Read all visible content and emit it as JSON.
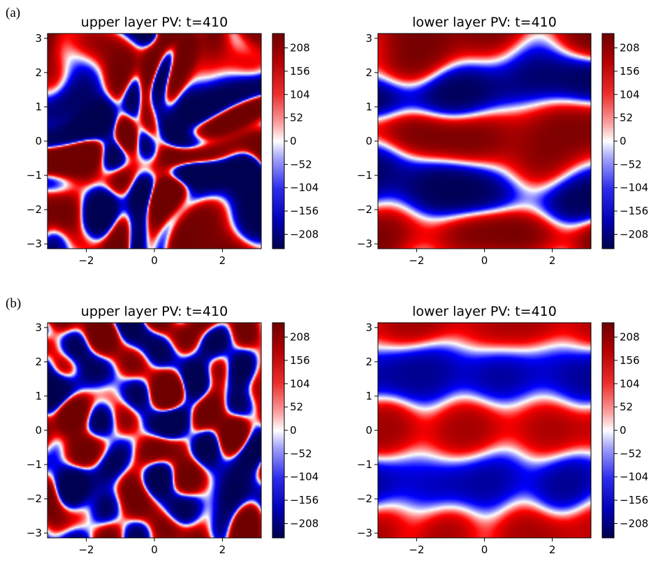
{
  "panel_labels": [
    "(a)",
    "(b)"
  ],
  "chart_data": [
    {
      "type": "heatmap",
      "panel": "(a)",
      "title": "upper layer PV: t=410",
      "xlabel": "",
      "ylabel": "",
      "xlim": [
        -3.14,
        3.14
      ],
      "ylim": [
        -3.14,
        3.14
      ],
      "xticks": [
        -2,
        0,
        2
      ],
      "xtick_labels": [
        "−2",
        "0",
        "2"
      ],
      "yticks": [
        -3,
        -2,
        -1,
        0,
        1,
        2,
        3
      ],
      "ytick_labels": [
        "−3",
        "−2",
        "−1",
        "0",
        "1",
        "2",
        "3"
      ],
      "pattern": "turbulent",
      "colorbar": {
        "range": [
          -240,
          240
        ],
        "ticks": [
          208,
          156,
          104,
          52,
          0,
          -52,
          -104,
          -156,
          -208
        ],
        "tick_labels": [
          "208",
          "156",
          "104",
          "52",
          "0",
          "−52",
          "−104",
          "−156",
          "−208"
        ],
        "cmap": "seismic"
      }
    },
    {
      "type": "heatmap",
      "panel": "(a)",
      "title": "lower layer PV: t=410",
      "xlabel": "",
      "ylabel": "",
      "xlim": [
        -3.14,
        3.14
      ],
      "ylim": [
        -3.14,
        3.14
      ],
      "xticks": [
        -2,
        0,
        2
      ],
      "xtick_labels": [
        "−2",
        "0",
        "2"
      ],
      "yticks": [
        -3,
        -2,
        -1,
        0,
        1,
        2,
        3
      ],
      "ytick_labels": [
        "−3",
        "−2",
        "−1",
        "0",
        "1",
        "2",
        "3"
      ],
      "pattern": "zonal-bands-swirled",
      "colorbar": {
        "range": [
          -240,
          240
        ],
        "ticks": [
          208,
          156,
          104,
          52,
          0,
          -52,
          -104,
          -156,
          -208
        ],
        "tick_labels": [
          "208",
          "156",
          "104",
          "52",
          "0",
          "−52",
          "−104",
          "−156",
          "−208"
        ],
        "cmap": "seismic"
      }
    },
    {
      "type": "heatmap",
      "panel": "(b)",
      "title": "upper layer PV: t=410",
      "xlabel": "",
      "ylabel": "",
      "xlim": [
        -3.14,
        3.14
      ],
      "ylim": [
        -3.14,
        3.14
      ],
      "xticks": [
        -2,
        0,
        2
      ],
      "xtick_labels": [
        "−2",
        "0",
        "2"
      ],
      "yticks": [
        -3,
        -2,
        -1,
        0,
        1,
        2,
        3
      ],
      "ytick_labels": [
        "−3",
        "−2",
        "−1",
        "0",
        "1",
        "2",
        "3"
      ],
      "pattern": "banded-turbulent",
      "colorbar": {
        "range": [
          -240,
          240
        ],
        "ticks": [
          208,
          156,
          104,
          52,
          0,
          -52,
          -104,
          -156,
          -208
        ],
        "tick_labels": [
          "208",
          "156",
          "104",
          "52",
          "0",
          "−52",
          "−104",
          "−156",
          "−208"
        ],
        "cmap": "seismic"
      }
    },
    {
      "type": "heatmap",
      "panel": "(b)",
      "title": "lower layer PV: t=410",
      "xlabel": "",
      "ylabel": "",
      "xlim": [
        -3.14,
        3.14
      ],
      "ylim": [
        -3.14,
        3.14
      ],
      "xticks": [
        -2,
        0,
        2
      ],
      "xtick_labels": [
        "−2",
        "0",
        "2"
      ],
      "yticks": [
        -3,
        -2,
        -1,
        0,
        1,
        2,
        3
      ],
      "ytick_labels": [
        "−3",
        "−2",
        "−1",
        "0",
        "1",
        "2",
        "3"
      ],
      "pattern": "zonal-bands-smooth",
      "colorbar": {
        "range": [
          -240,
          240
        ],
        "ticks": [
          208,
          156,
          104,
          52,
          0,
          -52,
          -104,
          -156,
          -208
        ],
        "tick_labels": [
          "208",
          "156",
          "104",
          "52",
          "0",
          "−52",
          "−104",
          "−156",
          "−208"
        ],
        "cmap": "seismic"
      }
    }
  ]
}
